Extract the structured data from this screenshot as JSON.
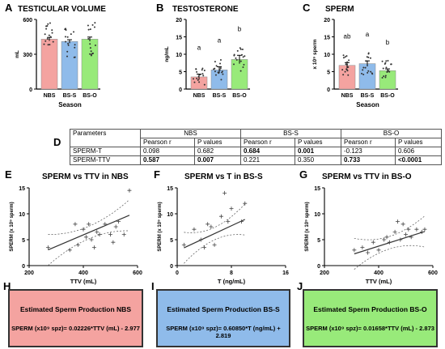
{
  "panels": {
    "A": {
      "letter": "A",
      "title": "TESTICULAR VOLUME",
      "ylabel": "mL",
      "xlabel": "Season"
    },
    "B": {
      "letter": "B",
      "title": "TESTOSTERONE",
      "ylabel": "ng/mL"
    },
    "C": {
      "letter": "C",
      "title": "SPERM",
      "ylabel": "x 10⁹ sperm",
      "xlabel": "Season"
    },
    "D": {
      "letter": "D"
    },
    "E": {
      "letter": "E",
      "title": "SPERM vs TTV in NBS"
    },
    "F": {
      "letter": "F",
      "title": "SPERM vs T in BS-S"
    },
    "G": {
      "letter": "G",
      "title": "SPERM vs TTV in BS-O"
    },
    "H": {
      "letter": "H"
    },
    "I": {
      "letter": "I"
    },
    "J": {
      "letter": "J"
    }
  },
  "table": {
    "header": [
      "Parameters",
      "NBS",
      "BS-S",
      "BS-O"
    ],
    "subheader": [
      "",
      "Pearson r",
      "P values",
      "Pearson r",
      "P values",
      "Pearson r",
      "P values"
    ],
    "rows": [
      [
        "SPERM-T",
        "0.098",
        "0.682",
        "0.684",
        "0.001",
        "-0.123",
        "0.606"
      ],
      [
        "SPERM-TTV",
        "0.587",
        "0.007",
        "0.221",
        "0.350",
        "0.733",
        "<0.0001"
      ]
    ]
  },
  "boxes": [
    {
      "title": "Estimated Sperm Production NBS",
      "formula": "SPERM (x10⁹ spz)= 0.02226*TTV (mL) - 2.977",
      "color": "#f4a3a0"
    },
    {
      "title": "Estimated Sperm Production BS-S",
      "formula": "SPERM (x10⁹ spz)= 0.60850*T (ng/mL) + 2.819",
      "color": "#8fbbea"
    },
    {
      "title": "Estimated Sperm Production BS-O",
      "formula": "SPERM (x10⁹ spz)= 0.01658*TTV (mL) - 2.873",
      "color": "#98ea7a"
    }
  ],
  "chart_data": [
    {
      "type": "bar",
      "panel": "A",
      "categories": [
        "NBS",
        "BS-S",
        "BS-O"
      ],
      "values": [
        430,
        410,
        430
      ],
      "errors": [
        15,
        15,
        18
      ],
      "colors": [
        "#f4a3a0",
        "#8fbbea",
        "#98ea7a"
      ],
      "ylim": [
        0,
        600
      ],
      "yticks": [
        0,
        300,
        600
      ],
      "ylabel": "mL",
      "xlabel": "Season",
      "letters": [
        "",
        "",
        ""
      ]
    },
    {
      "type": "bar",
      "panel": "B",
      "categories": [
        "NBS",
        "BS-S",
        "BS-O"
      ],
      "values": [
        3.5,
        5.5,
        8.5
      ],
      "errors": [
        0.8,
        0.9,
        1.2
      ],
      "colors": [
        "#f4a3a0",
        "#8fbbea",
        "#98ea7a"
      ],
      "ylim": [
        0,
        20
      ],
      "yticks": [
        0,
        5,
        10,
        15,
        20
      ],
      "ylabel": "ng/mL",
      "xlabel": "",
      "letters": [
        "a",
        "a",
        "b"
      ]
    },
    {
      "type": "bar",
      "panel": "C",
      "categories": [
        "NBS",
        "BS-S",
        "BS-O"
      ],
      "values": [
        6.8,
        7.3,
        5.3
      ],
      "errors": [
        0.8,
        0.8,
        0.5
      ],
      "colors": [
        "#f4a3a0",
        "#8fbbea",
        "#98ea7a"
      ],
      "ylim": [
        0,
        20
      ],
      "yticks": [
        0,
        5,
        10,
        15,
        20
      ],
      "ylabel": "x 10⁹ sperm",
      "xlabel": "Season",
      "letters": [
        "ab",
        "a",
        "b"
      ]
    },
    {
      "type": "scatter",
      "panel": "E",
      "x": [
        270,
        350,
        370,
        380,
        400,
        410,
        420,
        430,
        440,
        450,
        460,
        480,
        500,
        510,
        520,
        530,
        550,
        570
      ],
      "y": [
        3.5,
        3.0,
        8.0,
        4.0,
        7.0,
        5.5,
        8.0,
        5.0,
        3.5,
        6.5,
        6.0,
        8.0,
        6.0,
        4.5,
        7.5,
        8.5,
        6.0,
        14.5
      ],
      "fit": {
        "slope": 0.02226,
        "intercept": -2.977
      },
      "xlim": [
        200,
        600
      ],
      "ylim": [
        0,
        15
      ],
      "xticks": [
        200,
        400,
        600
      ],
      "yticks": [
        0,
        5,
        10,
        15
      ],
      "xlabel": "TTV (mL)",
      "ylabel": "SPERM (x 10⁹ sperm)"
    },
    {
      "type": "scatter",
      "panel": "F",
      "x": [
        1.0,
        2.5,
        3.5,
        4.0,
        4.5,
        5.0,
        5.5,
        6.5,
        7.0,
        7.5,
        8.0,
        9.5,
        10.0
      ],
      "y": [
        4.0,
        7.0,
        5.0,
        3.5,
        8.0,
        7.5,
        4.0,
        9.5,
        14.0,
        8.5,
        11.0,
        8.5,
        12.0
      ],
      "fit": {
        "slope": 0.6085,
        "intercept": 2.819
      },
      "xlim": [
        0,
        16
      ],
      "ylim": [
        0,
        15
      ],
      "xticks": [
        0,
        8,
        16
      ],
      "yticks": [
        0,
        5,
        10,
        15
      ],
      "xlabel": "T (ng/mL)",
      "ylabel": "SPERM (x 10⁹ sperm)"
    },
    {
      "type": "scatter",
      "panel": "G",
      "x": [
        310,
        340,
        360,
        380,
        400,
        420,
        430,
        440,
        460,
        470,
        480,
        490,
        500,
        510,
        520,
        540,
        560,
        570
      ],
      "y": [
        3.0,
        3.5,
        2.5,
        4.5,
        3.0,
        5.0,
        5.5,
        4.5,
        6.5,
        8.5,
        5.0,
        8.0,
        6.0,
        7.0,
        5.5,
        7.0,
        6.5,
        7.0
      ],
      "fit": {
        "slope": 0.01658,
        "intercept": -2.873
      },
      "xlim": [
        200,
        600
      ],
      "ylim": [
        0,
        15
      ],
      "xticks": [
        200,
        400,
        600
      ],
      "yticks": [
        0,
        5,
        10,
        15
      ],
      "xlabel": "TTV (mL)",
      "ylabel": "SPERM (x 10⁹ sperm)"
    }
  ]
}
